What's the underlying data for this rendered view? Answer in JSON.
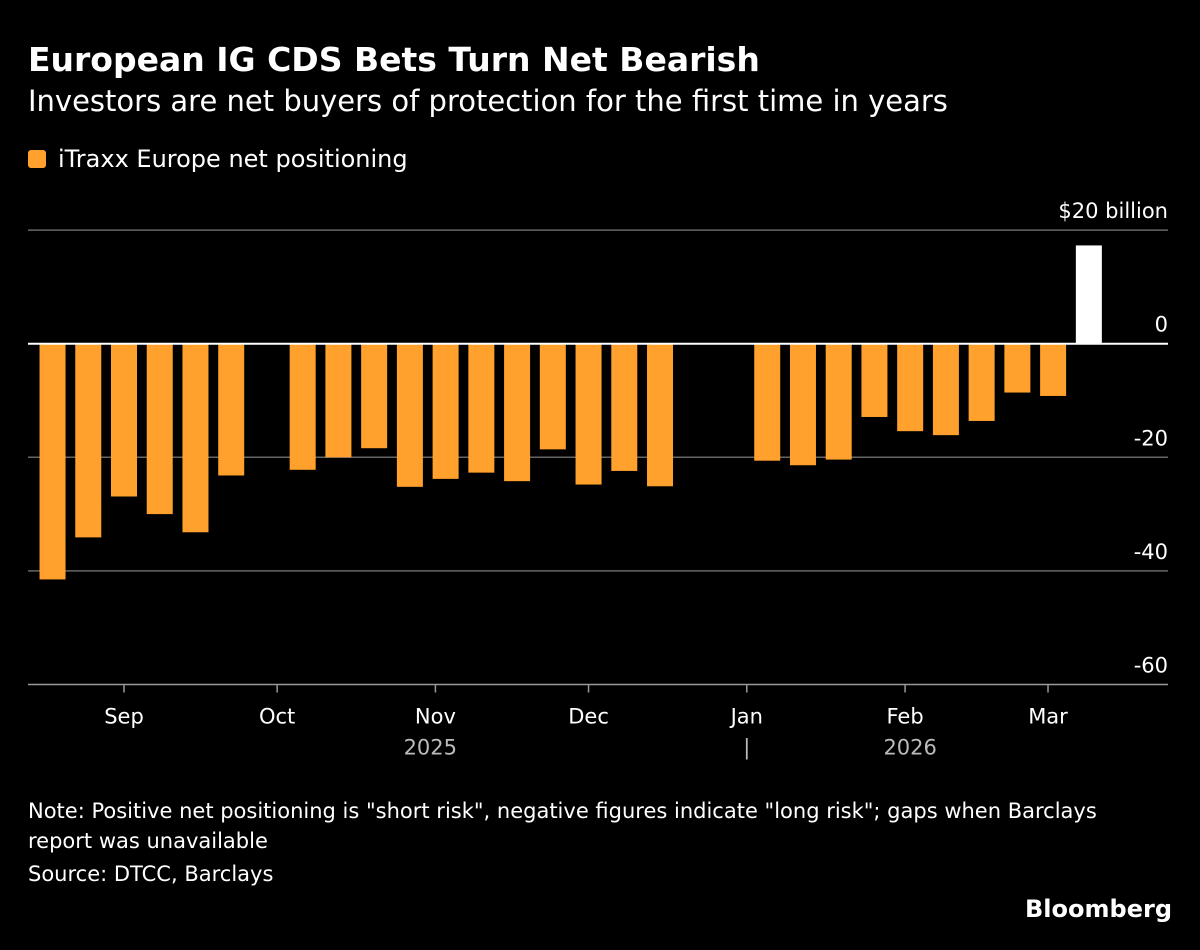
{
  "title": "European IG CDS Bets Turn Net Bearish",
  "subtitle": "Investors are net buyers of protection for the first time in years",
  "note": "Note: Positive net positioning is \"short risk\", negative figures indicate \"long risk\"; gaps when Barclays report was unavailable",
  "source": "Source: DTCC, Barclays",
  "brand": "Bloomberg",
  "colors": {
    "bar": "#FFA12C",
    "highlight": "#FFFFFF",
    "background": "#000000",
    "grid": "#666666"
  },
  "chart_data": {
    "type": "bar",
    "title": "European IG CDS Bets Turn Net Bearish",
    "subtitle": "Investors are net buyers of protection for the first time in years",
    "legend": [
      {
        "name": "iTraxx Europe net positioning",
        "color": "#FFA12C"
      }
    ],
    "legend_placement": "top-left",
    "ylabel": "$20 billion",
    "ylim": [
      -60,
      20
    ],
    "yticks": [
      {
        "value": 20,
        "label": "$20 billion"
      },
      {
        "value": 0,
        "label": "0"
      },
      {
        "value": -20,
        "label": "-20"
      },
      {
        "value": -40,
        "label": "-40"
      },
      {
        "value": -60,
        "label": "-60"
      }
    ],
    "grid": true,
    "xlim": [
      "2025-08-12",
      "2026-03-26"
    ],
    "xticks": [
      {
        "date": "2025-09-01",
        "label": "Sep"
      },
      {
        "date": "2025-10-01",
        "label": "Oct"
      },
      {
        "date": "2025-11-01",
        "label": "Nov"
      },
      {
        "date": "2025-12-01",
        "label": "Dec"
      },
      {
        "date": "2026-01-01",
        "label": "Jan"
      },
      {
        "date": "2026-02-01",
        "label": "Feb"
      },
      {
        "date": "2026-03-01",
        "label": "Mar"
      }
    ],
    "year_labels": [
      {
        "label": "2025",
        "date": "2025-10-31"
      },
      {
        "label": "|",
        "date": "2026-01-01"
      },
      {
        "label": "2026",
        "date": "2026-02-02"
      }
    ],
    "series": [
      {
        "name": "iTraxx Europe net positioning",
        "x": [
          "2025-08-18",
          "2025-08-25",
          "2025-09-01",
          "2025-09-08",
          "2025-09-15",
          "2025-09-22",
          "2025-10-06",
          "2025-10-13",
          "2025-10-20",
          "2025-10-27",
          "2025-11-03",
          "2025-11-10",
          "2025-11-17",
          "2025-11-24",
          "2025-12-01",
          "2025-12-08",
          "2025-12-15",
          "2026-01-05",
          "2026-01-12",
          "2026-01-19",
          "2026-01-26",
          "2026-02-02",
          "2026-02-09",
          "2026-02-16",
          "2026-02-23",
          "2026-03-02",
          "2026-03-09"
        ],
        "values": [
          -41.5,
          -34.1,
          -26.9,
          -30.0,
          -33.2,
          -23.2,
          -22.2,
          -20.0,
          -18.4,
          -25.2,
          -23.8,
          -22.7,
          -24.2,
          -18.6,
          -24.8,
          -22.4,
          -25.1,
          -20.6,
          -21.4,
          -20.4,
          -12.9,
          -15.4,
          -16.1,
          -13.6,
          -8.6,
          -9.2,
          17.3
        ]
      }
    ]
  }
}
